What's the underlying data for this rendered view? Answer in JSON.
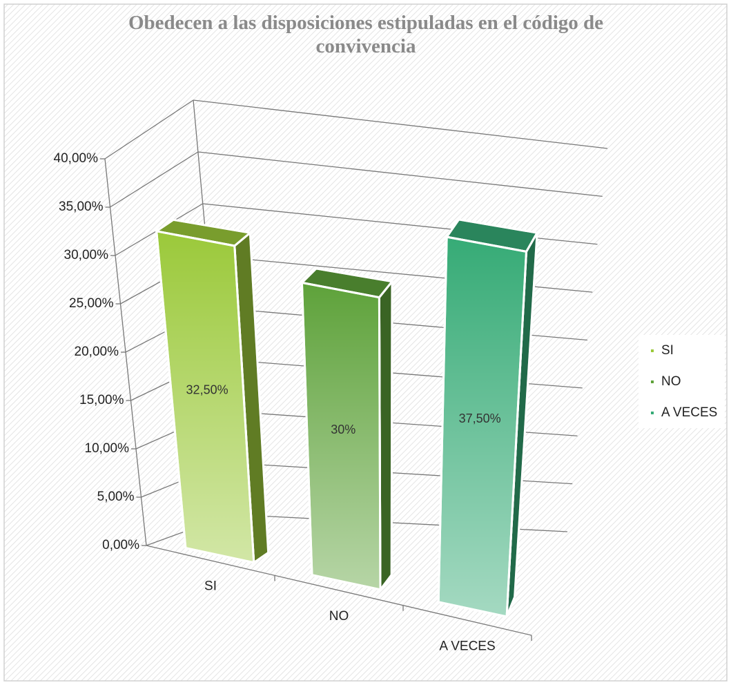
{
  "chart_data": {
    "type": "bar",
    "title": "Obedecen a las disposiciones estipuladas en el código de convivencia",
    "categories": [
      "SI",
      "NO",
      "A VECES"
    ],
    "values": [
      32.5,
      30,
      37.5
    ],
    "value_labels": [
      "32,50%",
      "30%",
      "37,50%"
    ],
    "colors": [
      "#9bc93a",
      "#5ea23a",
      "#36ab76"
    ],
    "ylim": [
      0,
      40
    ],
    "yticks": [
      {
        "value": 0,
        "label": "0,00%"
      },
      {
        "value": 5,
        "label": "5,00%"
      },
      {
        "value": 10,
        "label": "10,00%"
      },
      {
        "value": 15,
        "label": "15,00%"
      },
      {
        "value": 20,
        "label": "20,00%"
      },
      {
        "value": 25,
        "label": "25,00%"
      },
      {
        "value": 30,
        "label": "30,00%"
      },
      {
        "value": 35,
        "label": "35,00%"
      },
      {
        "value": 40,
        "label": "40,00%"
      }
    ],
    "grid": true,
    "legend": "right"
  }
}
